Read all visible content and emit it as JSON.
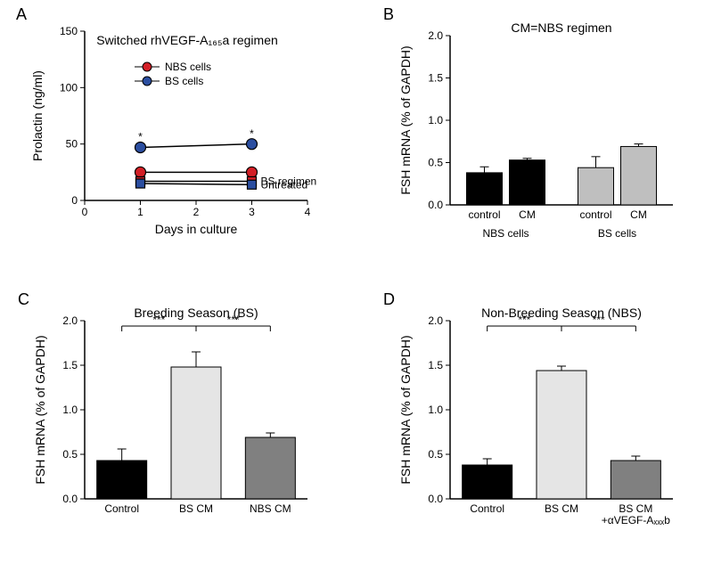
{
  "panelLetters": {
    "A": "A",
    "B": "B",
    "C": "C",
    "D": "D"
  },
  "A": {
    "title": "Switched rhVEGF-A₁₆₅a regimen",
    "xlabel": "Days in culture",
    "ylabel": "Prolactin (ng/ml)",
    "xlim": [
      0,
      4
    ],
    "ylim": [
      0,
      150
    ],
    "xticks": [
      0,
      1,
      2,
      3,
      4
    ],
    "yticks": [
      0,
      50,
      100,
      150
    ],
    "series": [
      {
        "name": "NBS cells",
        "color": "#d31f26",
        "marker": "circle",
        "label": "NBS cells",
        "x": [
          1,
          3
        ],
        "y": [
          25,
          25
        ],
        "err": [
          2,
          2
        ]
      },
      {
        "name": "BS cells",
        "color": "#2b4ea0",
        "marker": "circle",
        "label": "BS cells",
        "x": [
          1,
          3
        ],
        "y": [
          47,
          50
        ],
        "err": [
          3,
          3
        ],
        "star": [
          true,
          true
        ]
      },
      {
        "name": "BS regimen",
        "color": "#d31f26",
        "marker": "square",
        "label": "",
        "x": [
          1,
          3
        ],
        "y": [
          17,
          17
        ],
        "err": [
          1.5,
          1.5
        ],
        "annot": "BS regimen"
      },
      {
        "name": "Untreated",
        "color": "#2b4ea0",
        "marker": "square",
        "label": "",
        "x": [
          1,
          3
        ],
        "y": [
          15,
          14
        ],
        "err": [
          1.5,
          1.5
        ],
        "annot": "Untreated"
      }
    ],
    "legend": {
      "items": [
        {
          "label": "NBS cells",
          "color": "#d31f26",
          "marker": "circle"
        },
        {
          "label": "BS cells",
          "color": "#2b4ea0",
          "marker": "circle"
        }
      ]
    },
    "line_color": "#000000",
    "axis_color": "#000000"
  },
  "B": {
    "title": "CM=NBS regimen",
    "ylabel": "FSH mRNA (% of GAPDH)",
    "ylim": [
      0,
      2.0
    ],
    "yticks": [
      0.0,
      0.5,
      1.0,
      1.5,
      2.0
    ],
    "groups": [
      {
        "group": "NBS cells",
        "bars": [
          {
            "label": "control",
            "value": 0.38,
            "err": 0.07,
            "fill": "#000000"
          },
          {
            "label": "CM",
            "value": 0.53,
            "err": 0.02,
            "fill": "#000000"
          }
        ]
      },
      {
        "group": "BS cells",
        "bars": [
          {
            "label": "control",
            "value": 0.44,
            "err": 0.13,
            "fill": "#bfbfbf"
          },
          {
            "label": "CM",
            "value": 0.69,
            "err": 0.03,
            "fill": "#bfbfbf"
          }
        ]
      }
    ],
    "axis_color": "#000000"
  },
  "C": {
    "title": "Breeding Season (BS)",
    "ylabel": "FSH mRNA (% of GAPDH)",
    "ylim": [
      0,
      2.0
    ],
    "yticks": [
      0.0,
      0.5,
      1.0,
      1.5,
      2.0
    ],
    "bars": [
      {
        "label": "Control",
        "value": 0.43,
        "err": 0.13,
        "fill": "#000000"
      },
      {
        "label": "BS  CM",
        "value": 1.48,
        "err": 0.17,
        "fill": "#e5e5e5"
      },
      {
        "label": "NBS CM",
        "value": 0.69,
        "err": 0.05,
        "fill": "#808080"
      }
    ],
    "sig": [
      {
        "from": 0,
        "to": 1,
        "label": "***"
      },
      {
        "from": 1,
        "to": 2,
        "label": "***"
      }
    ],
    "axis_color": "#000000"
  },
  "D": {
    "title": "Non-Breeding Season (NBS)",
    "ylabel": "FSH mRNA (% of GAPDH)",
    "ylim": [
      0,
      2.0
    ],
    "yticks": [
      0.0,
      0.5,
      1.0,
      1.5,
      2.0
    ],
    "bars": [
      {
        "label": "Control",
        "value": 0.38,
        "err": 0.07,
        "fill": "#000000"
      },
      {
        "label": "BS  CM",
        "value": 1.44,
        "err": 0.05,
        "fill": "#e5e5e5"
      },
      {
        "label": "BS CM\n+αVEGF-Aₓₓₓb",
        "value": 0.43,
        "err": 0.05,
        "fill": "#808080"
      }
    ],
    "sig": [
      {
        "from": 0,
        "to": 1,
        "label": "***"
      },
      {
        "from": 1,
        "to": 2,
        "label": "***"
      }
    ],
    "axis_color": "#000000"
  }
}
